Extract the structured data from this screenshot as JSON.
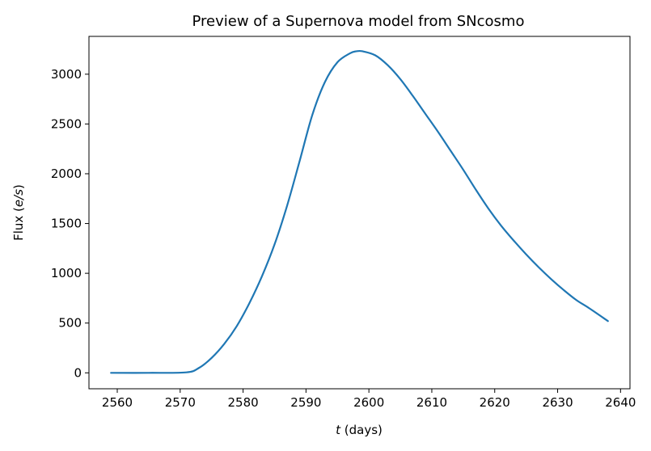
{
  "chart_data": {
    "type": "line",
    "title": "Preview of a Supernova model from SNcosmo",
    "xlabel": {
      "italic": "t",
      "rest": " (days)"
    },
    "ylabel": {
      "pre": "Flux (",
      "italic": "e/s",
      "post": ")"
    },
    "xlim": [
      2555.5,
      2641.5
    ],
    "ylim": [
      -160,
      3380
    ],
    "xticks": [
      2560,
      2570,
      2580,
      2590,
      2600,
      2610,
      2620,
      2630,
      2640
    ],
    "yticks": [
      0,
      500,
      1000,
      1500,
      2000,
      2500,
      3000
    ],
    "grid": false,
    "series": [
      {
        "color": "#1f77b4",
        "x": [
          2559,
          2565,
          2571,
          2573,
          2575,
          2577,
          2579,
          2581,
          2583,
          2585,
          2587,
          2589,
          2591,
          2593,
          2595,
          2597,
          2598,
          2599,
          2601,
          2603,
          2605,
          2607,
          2609,
          2611,
          2613,
          2615,
          2617,
          2619,
          2621,
          2623,
          2625,
          2627,
          2629,
          2631,
          2633,
          2635,
          2638
        ],
        "y": [
          0,
          0,
          5,
          50,
          150,
          290,
          470,
          700,
          970,
          1290,
          1680,
          2130,
          2590,
          2920,
          3120,
          3210,
          3230,
          3230,
          3190,
          3090,
          2950,
          2780,
          2600,
          2420,
          2230,
          2040,
          1840,
          1650,
          1480,
          1330,
          1190,
          1060,
          940,
          830,
          730,
          650,
          520
        ]
      }
    ]
  }
}
